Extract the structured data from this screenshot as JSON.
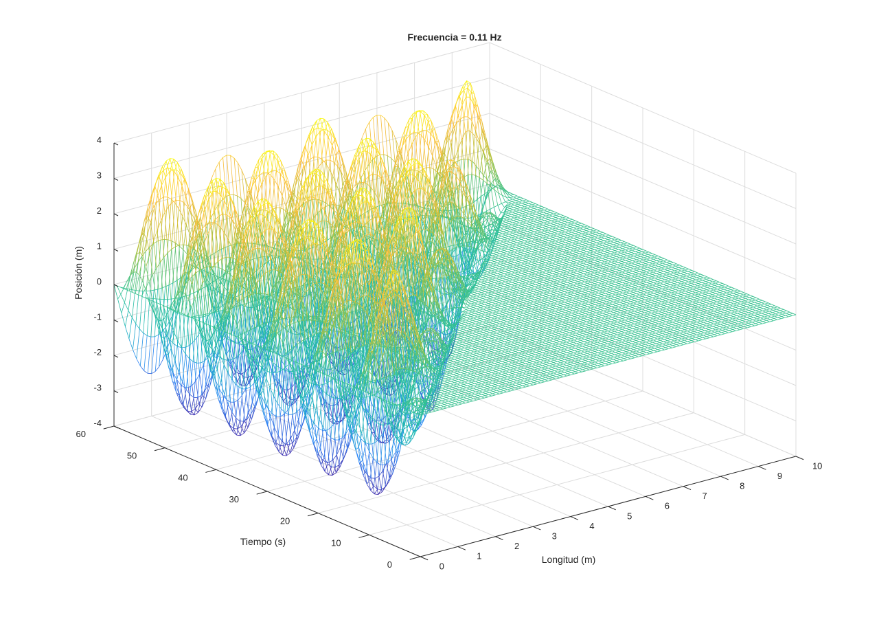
{
  "chart_data": {
    "type": "surface-mesh",
    "title": "Frecuencia = 0.11 Hz",
    "xlabel": "Longitud (m)",
    "ylabel": "Tiempo (s)",
    "zlabel": "Posición (m)",
    "xlim": [
      0,
      10
    ],
    "ylim": [
      0,
      60
    ],
    "zlim": [
      -4,
      4
    ],
    "xticks": [
      "0",
      "1",
      "2",
      "3",
      "4",
      "5",
      "6",
      "7",
      "8",
      "9",
      "10"
    ],
    "yticks": [
      "0",
      "10",
      "20",
      "30",
      "40",
      "50",
      "60"
    ],
    "zticks": [
      "-4",
      "-3",
      "-2",
      "-1",
      "0",
      "1",
      "2",
      "3",
      "4"
    ],
    "grid": true,
    "colormap": "parula",
    "colors": [
      "#3e26a8",
      "#2e87f7",
      "#1ab7b6",
      "#35c28f",
      "#b4c138",
      "#fdbd3c",
      "#f9fb0e"
    ],
    "surface": {
      "description": "Standing wave with a front travelling in x",
      "amplitude": 3.5,
      "wavelength_m": 4,
      "frequency_hz": 0.11,
      "wave_speed_m_per_s": 0.18
    }
  }
}
